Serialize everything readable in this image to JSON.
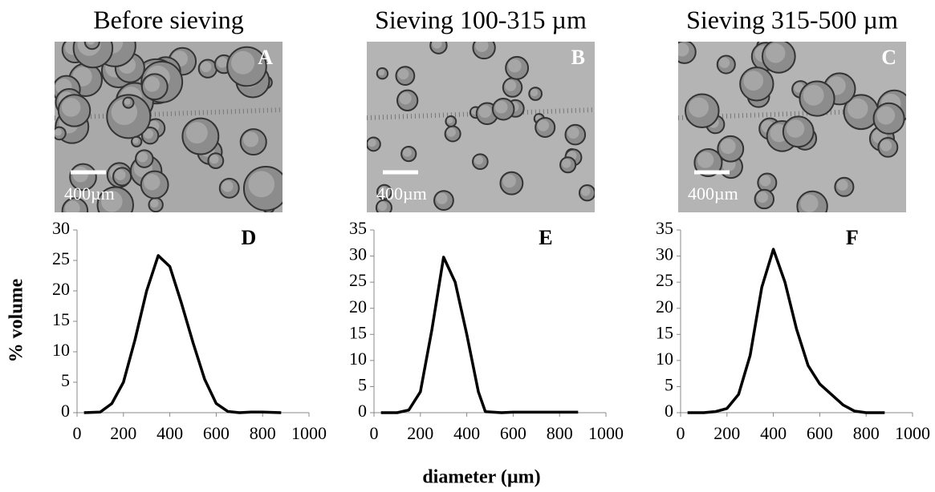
{
  "panels": [
    {
      "title": "Before sieving",
      "image_label": "A",
      "scale_label": "400µm"
    },
    {
      "title": "Sieving 100-315 µm",
      "image_label": "B",
      "scale_label": "400µm"
    },
    {
      "title": "Sieving 315-500 µm",
      "image_label": "C",
      "scale_label": "400µm"
    }
  ],
  "y_axis_label": "% volume",
  "x_axis_label": "diameter (µm)",
  "chart_data": [
    {
      "type": "line",
      "panel_label": "D",
      "color": "#000000",
      "x": [
        30,
        100,
        150,
        200,
        250,
        300,
        350,
        400,
        450,
        500,
        550,
        600,
        650,
        700,
        750,
        800,
        880
      ],
      "values": [
        0,
        0.1,
        1.5,
        5,
        12,
        20,
        25.8,
        24,
        18,
        11.5,
        5.5,
        1.5,
        0.2,
        0,
        0.1,
        0.1,
        0
      ],
      "xlim": [
        0,
        1000
      ],
      "xticks": [
        0,
        200,
        400,
        600,
        800,
        1000
      ],
      "ylim": [
        0,
        30
      ],
      "yticks": [
        0,
        5,
        10,
        15,
        20,
        25,
        30
      ]
    },
    {
      "type": "line",
      "panel_label": "E",
      "color": "#000000",
      "x": [
        30,
        100,
        150,
        200,
        250,
        300,
        350,
        400,
        450,
        480,
        550,
        600,
        700,
        800,
        880
      ],
      "values": [
        0,
        0,
        0.5,
        4,
        16,
        29.8,
        25,
        15,
        4,
        0.2,
        0,
        0.1,
        0.1,
        0.1,
        0.1
      ],
      "xlim": [
        0,
        1000
      ],
      "xticks": [
        0,
        200,
        400,
        600,
        800,
        1000
      ],
      "ylim": [
        0,
        35
      ],
      "yticks": [
        0,
        5,
        10,
        15,
        20,
        25,
        30,
        35
      ]
    },
    {
      "type": "line",
      "panel_label": "F",
      "color": "#000000",
      "x": [
        30,
        100,
        150,
        200,
        250,
        300,
        350,
        400,
        450,
        500,
        550,
        600,
        650,
        700,
        750,
        800,
        880
      ],
      "values": [
        0,
        0,
        0.2,
        0.8,
        3.5,
        11,
        24,
        31.3,
        25,
        16,
        9,
        5.5,
        3.5,
        1.5,
        0.3,
        0,
        0
      ],
      "xlim": [
        0,
        1000
      ],
      "xticks": [
        0,
        200,
        400,
        600,
        800,
        1000
      ],
      "ylim": [
        0,
        35
      ],
      "yticks": [
        0,
        5,
        10,
        15,
        20,
        25,
        30,
        35
      ]
    }
  ]
}
